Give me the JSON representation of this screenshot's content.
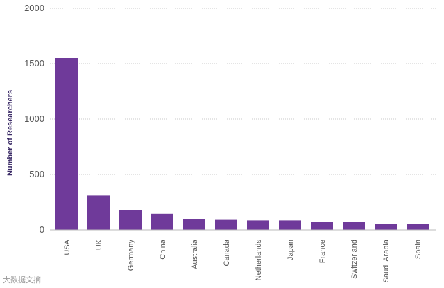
{
  "chart_data": {
    "type": "bar",
    "title": "",
    "xlabel": "",
    "ylabel": "Number of Researchers",
    "ylim": [
      0,
      2000
    ],
    "yticks": [
      0,
      500,
      1000,
      1500,
      2000
    ],
    "grid": true,
    "bar_color": "#6f3a9a",
    "categories": [
      "USA",
      "UK",
      "Germany",
      "China",
      "Australia",
      "Canada",
      "Netherlands",
      "Japan",
      "France",
      "Switzerland",
      "Saudi Arabia",
      "Spain"
    ],
    "values": [
      1550,
      310,
      175,
      145,
      100,
      90,
      85,
      85,
      70,
      70,
      55,
      55
    ]
  },
  "watermark": "大数据文摘"
}
